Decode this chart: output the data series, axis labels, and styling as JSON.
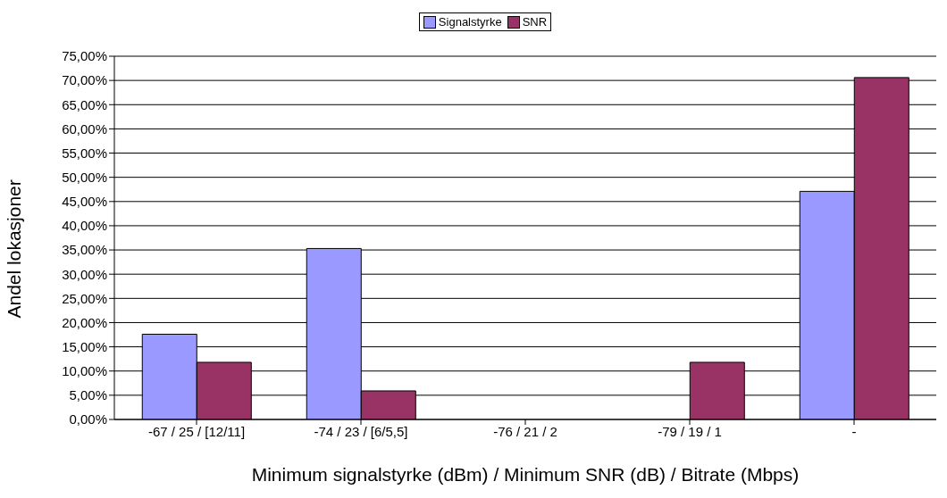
{
  "chart_data": {
    "type": "bar",
    "xlabel": "Minimum signalstyrke (dBm) / Minimum SNR (dB) / Bitrate (Mbps)",
    "ylabel": "Andel lokasjoner",
    "categories": [
      "-67 / 25 / [12/11]",
      "-74 / 23 / [6/5,5]",
      "-76 / 21 / 2",
      "-79 / 19 / 1",
      "-"
    ],
    "series": [
      {
        "name": "Signalstyrke",
        "color": "#9999ff",
        "values": [
          17.6,
          35.3,
          0,
          0,
          47.1
        ]
      },
      {
        "name": "SNR",
        "color": "#993366",
        "values": [
          11.8,
          5.9,
          0,
          11.8,
          70.6
        ]
      }
    ],
    "ylim": [
      0,
      75
    ],
    "yticks": [
      {
        "value": 0,
        "label": "0,00%"
      },
      {
        "value": 5,
        "label": "5,00%"
      },
      {
        "value": 10,
        "label": "10,00%"
      },
      {
        "value": 15,
        "label": "15,00%"
      },
      {
        "value": 20,
        "label": "20,00%"
      },
      {
        "value": 25,
        "label": "25,00%"
      },
      {
        "value": 30,
        "label": "30,00%"
      },
      {
        "value": 35,
        "label": "35,00%"
      },
      {
        "value": 40,
        "label": "40,00%"
      },
      {
        "value": 45,
        "label": "45,00%"
      },
      {
        "value": 50,
        "label": "50,00%"
      },
      {
        "value": 55,
        "label": "55,00%"
      },
      {
        "value": 60,
        "label": "60,00%"
      },
      {
        "value": 65,
        "label": "65,00%"
      },
      {
        "value": 70,
        "label": "70,00%"
      },
      {
        "value": 75,
        "label": "75,00%"
      }
    ],
    "grid": "y",
    "legend": "top"
  }
}
